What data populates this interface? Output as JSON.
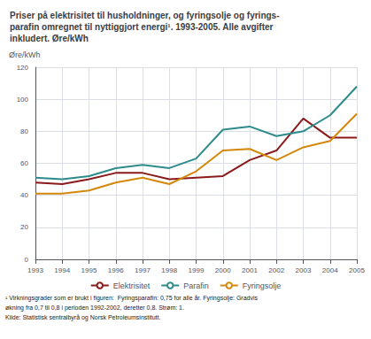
{
  "chart_data": {
    "type": "line",
    "title": "Priser på elektrisitet til husholdninger, og fyringsolje og fyrings-\nparafin omregnet til nyttiggjort energi¹. 1993-2005. Alle avgifter\ninkludert. Øre/kWh",
    "ylabel": "Øre/kWh",
    "x": [
      1993,
      1994,
      1995,
      1996,
      1997,
      1998,
      1999,
      2000,
      2001,
      2002,
      2003,
      2004,
      2005
    ],
    "xlim": [
      1993,
      2005
    ],
    "xticks": [
      1993,
      1994,
      1995,
      1996,
      1997,
      1998,
      1999,
      2000,
      2001,
      2002,
      2003,
      2004,
      2005
    ],
    "ylim": [
      0,
      120
    ],
    "yticks": [
      0,
      20,
      40,
      60,
      80,
      100,
      120
    ],
    "series": [
      {
        "name": "Elektrisitet",
        "color": "#8B1A1A",
        "values": [
          48,
          47,
          50,
          54,
          54,
          50,
          51,
          52,
          62,
          68,
          88,
          76,
          76
        ]
      },
      {
        "name": "Parafin",
        "color": "#2E8B8B",
        "values": [
          51,
          50,
          52,
          57,
          59,
          57,
          63,
          81,
          83,
          77,
          80,
          90,
          108
        ]
      },
      {
        "name": "Fyringsolje",
        "color": "#D4880A",
        "values": [
          41,
          41,
          43,
          48,
          51,
          47,
          55,
          68,
          69,
          62,
          70,
          74,
          91
        ]
      }
    ],
    "annotations": [
      "¹ Virkningsgrader som er brukt i figuren:  Fyringsparafin: 0,75 for alle år. Fyringsolje: Gradvis",
      "økning fra 0,7 til 0,8 i perioden 1992-2002, deretter 0,8. Strøm: 1.",
      "Kilde: Statistisk sentralbyrå og Norsk Petroleumsinstitutt."
    ],
    "grid": true,
    "legend": "bottom"
  }
}
